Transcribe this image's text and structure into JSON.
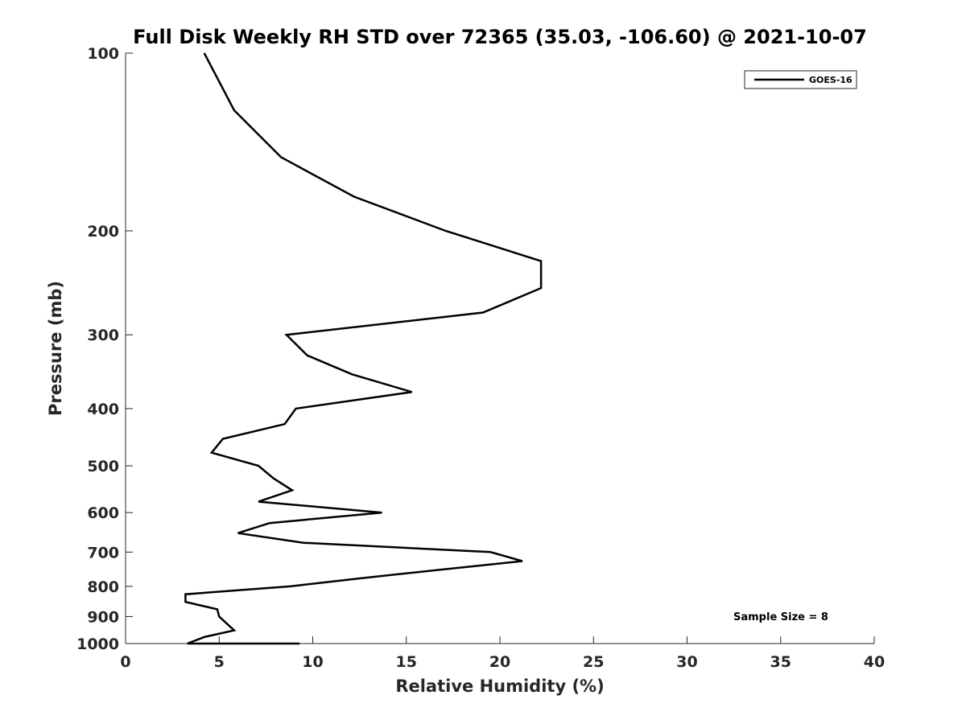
{
  "chart_data": {
    "type": "line",
    "title": "Full Disk Weekly RH STD over 72365 (35.03, -106.60) @ 2021-10-07",
    "xlabel": "Relative Humidity (%)",
    "ylabel": "Pressure (mb)",
    "xlim": [
      0,
      40
    ],
    "ylim": [
      100,
      1000
    ],
    "y_scale": "log",
    "y_reversed": true,
    "x_ticks": [
      "0",
      "5",
      "10",
      "15",
      "20",
      "25",
      "30",
      "35",
      "40"
    ],
    "y_ticks": [
      "100",
      "200",
      "300",
      "400",
      "500",
      "600",
      "700",
      "800",
      "900",
      "1000"
    ],
    "grid": false,
    "legend_position": "top-right",
    "annotation": "Sample Size = 8",
    "series": [
      {
        "name": "GOES-16",
        "color": "#000000",
        "points": [
          {
            "x": 4.2,
            "y": 100
          },
          {
            "x": 5.8,
            "y": 125
          },
          {
            "x": 8.3,
            "y": 150
          },
          {
            "x": 12.2,
            "y": 175
          },
          {
            "x": 17.1,
            "y": 200
          },
          {
            "x": 22.2,
            "y": 225
          },
          {
            "x": 22.2,
            "y": 250
          },
          {
            "x": 19.1,
            "y": 275
          },
          {
            "x": 8.6,
            "y": 300
          },
          {
            "x": 9.7,
            "y": 325
          },
          {
            "x": 12.1,
            "y": 350
          },
          {
            "x": 15.3,
            "y": 375
          },
          {
            "x": 9.1,
            "y": 400
          },
          {
            "x": 8.5,
            "y": 425
          },
          {
            "x": 5.2,
            "y": 450
          },
          {
            "x": 4.6,
            "y": 475
          },
          {
            "x": 7.1,
            "y": 500
          },
          {
            "x": 7.9,
            "y": 525
          },
          {
            "x": 8.9,
            "y": 550
          },
          {
            "x": 7.1,
            "y": 575
          },
          {
            "x": 13.7,
            "y": 600
          },
          {
            "x": 7.7,
            "y": 625
          },
          {
            "x": 6.0,
            "y": 650
          },
          {
            "x": 9.5,
            "y": 675
          },
          {
            "x": 19.5,
            "y": 700
          },
          {
            "x": 21.2,
            "y": 725
          },
          {
            "x": 16.8,
            "y": 750
          },
          {
            "x": 12.6,
            "y": 775
          },
          {
            "x": 8.8,
            "y": 800
          },
          {
            "x": 3.2,
            "y": 825
          },
          {
            "x": 3.2,
            "y": 850
          },
          {
            "x": 4.9,
            "y": 875
          },
          {
            "x": 5.0,
            "y": 900
          },
          {
            "x": 5.4,
            "y": 925
          },
          {
            "x": 5.8,
            "y": 950
          },
          {
            "x": 4.2,
            "y": 975
          },
          {
            "x": 3.3,
            "y": 1000
          },
          {
            "x": 9.3,
            "y": 1000
          }
        ]
      }
    ]
  }
}
